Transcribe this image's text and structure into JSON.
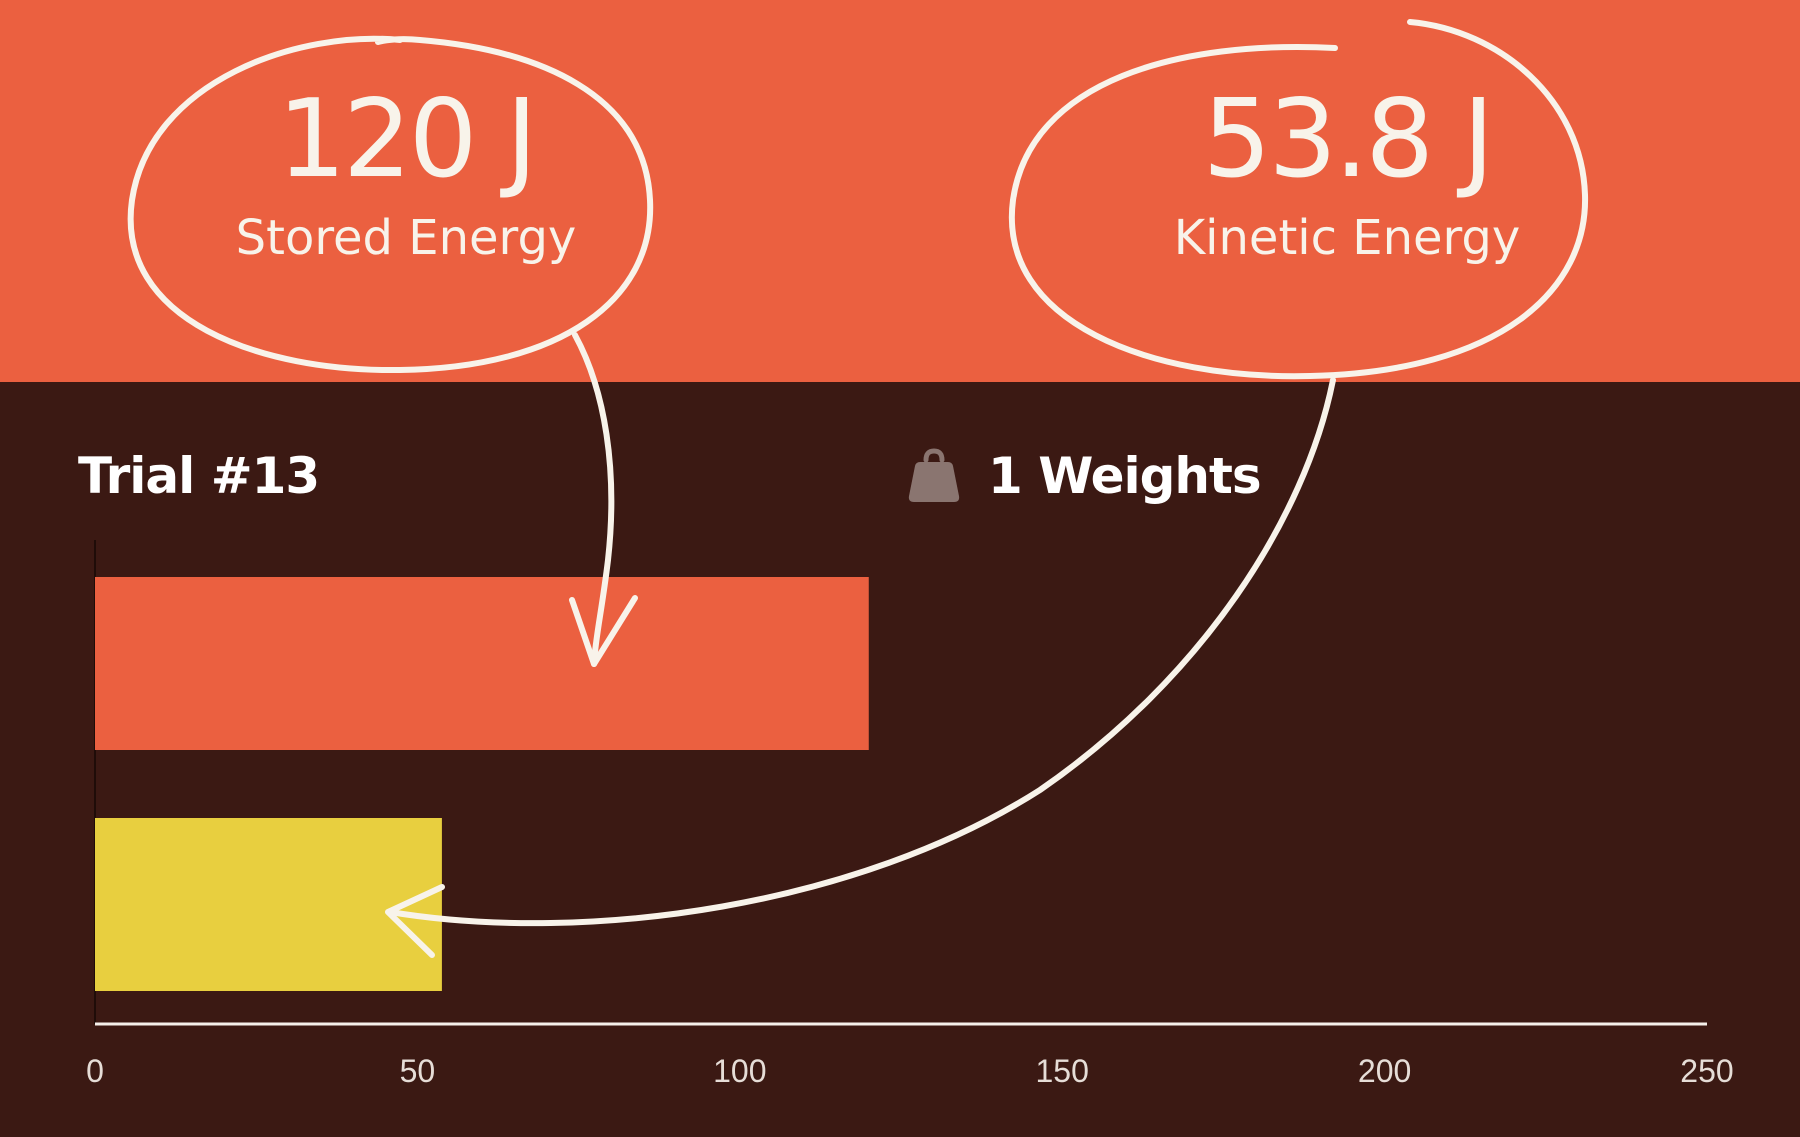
{
  "stats": {
    "stored": {
      "value": "120 J",
      "label": "Stored Energy"
    },
    "kinetic": {
      "value": "53.8 J",
      "label": "Kinetic Energy"
    }
  },
  "trial": {
    "title": "Trial #13"
  },
  "weights": {
    "label": "1 Weights",
    "icon": "weight-icon"
  },
  "colors": {
    "banner": "#eb6040",
    "background": "#3b1913",
    "stored_bar": "#eb6040",
    "kinetic_bar": "#e8cf3f",
    "annotation": "#f8f3ea"
  },
  "chart_data": {
    "type": "bar",
    "orientation": "horizontal",
    "categories": [
      "Stored Energy",
      "Kinetic Energy"
    ],
    "values": [
      120,
      53.8
    ],
    "bar_colors": [
      "#eb6040",
      "#e8cf3f"
    ],
    "xlim": [
      0,
      250
    ],
    "xticks": [
      0,
      50,
      100,
      150,
      200,
      250
    ],
    "title": "",
    "xlabel": "",
    "ylabel": "",
    "grid": false,
    "legend": "none"
  }
}
